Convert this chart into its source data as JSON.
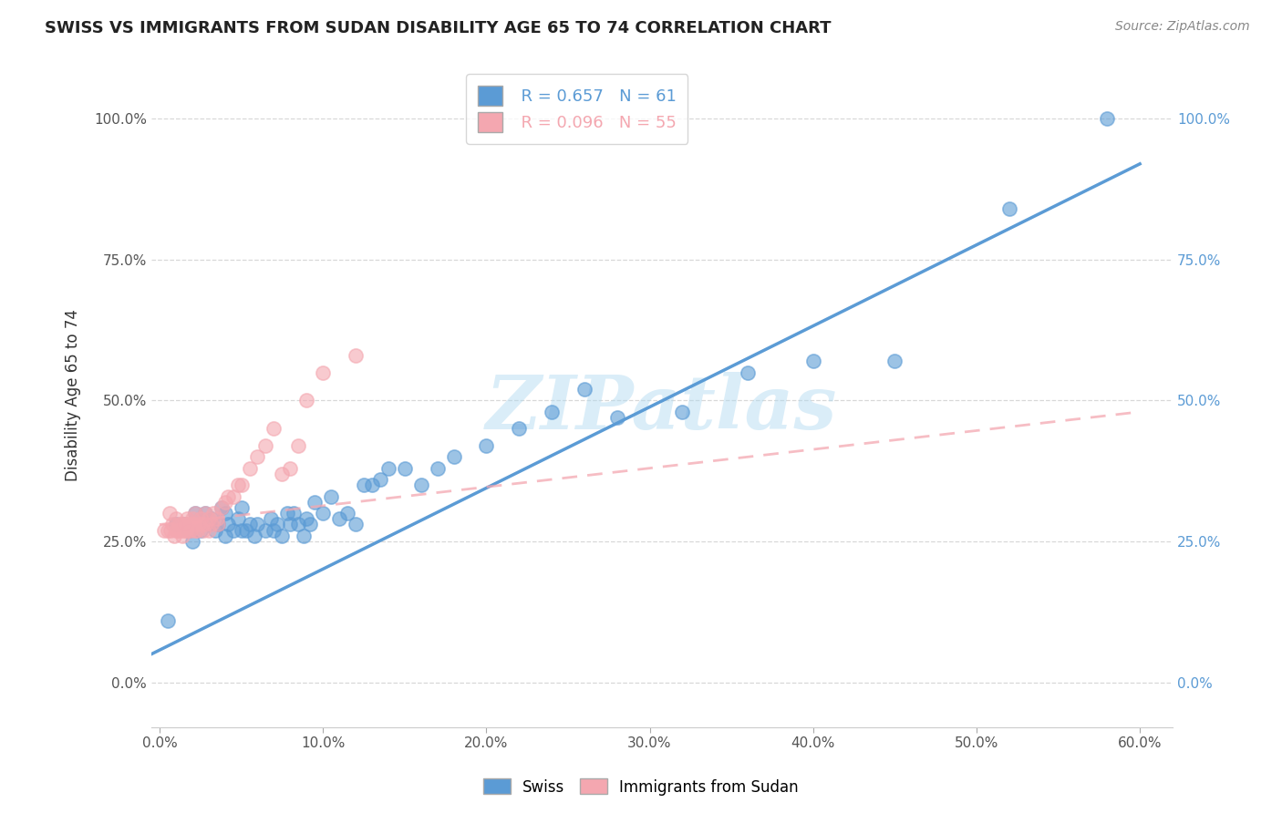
{
  "title": "SWISS VS IMMIGRANTS FROM SUDAN DISABILITY AGE 65 TO 74 CORRELATION CHART",
  "source": "Source: ZipAtlas.com",
  "ylabel": "Disability Age 65 to 74",
  "x_tick_vals": [
    0.0,
    0.1,
    0.2,
    0.3,
    0.4,
    0.5,
    0.6
  ],
  "y_tick_vals": [
    0.0,
    0.25,
    0.5,
    0.75,
    1.0
  ],
  "xlim": [
    -0.005,
    0.62
  ],
  "ylim": [
    -0.08,
    1.1
  ],
  "swiss_color": "#5b9bd5",
  "sudan_color": "#f4a7b0",
  "swiss_R": 0.657,
  "swiss_N": 61,
  "sudan_R": 0.096,
  "sudan_N": 55,
  "swiss_scatter_x": [
    0.005,
    0.01,
    0.015,
    0.018,
    0.02,
    0.022,
    0.025,
    0.028,
    0.03,
    0.032,
    0.034,
    0.036,
    0.038,
    0.04,
    0.04,
    0.042,
    0.045,
    0.048,
    0.05,
    0.05,
    0.053,
    0.055,
    0.058,
    0.06,
    0.065,
    0.068,
    0.07,
    0.072,
    0.075,
    0.078,
    0.08,
    0.082,
    0.085,
    0.088,
    0.09,
    0.092,
    0.095,
    0.1,
    0.105,
    0.11,
    0.115,
    0.12,
    0.125,
    0.13,
    0.135,
    0.14,
    0.15,
    0.16,
    0.17,
    0.18,
    0.2,
    0.22,
    0.24,
    0.26,
    0.28,
    0.32,
    0.36,
    0.4,
    0.45,
    0.52,
    0.58
  ],
  "swiss_scatter_y": [
    0.11,
    0.28,
    0.28,
    0.27,
    0.25,
    0.3,
    0.27,
    0.3,
    0.28,
    0.29,
    0.27,
    0.28,
    0.31,
    0.26,
    0.3,
    0.28,
    0.27,
    0.29,
    0.27,
    0.31,
    0.27,
    0.28,
    0.26,
    0.28,
    0.27,
    0.29,
    0.27,
    0.28,
    0.26,
    0.3,
    0.28,
    0.3,
    0.28,
    0.26,
    0.29,
    0.28,
    0.32,
    0.3,
    0.33,
    0.29,
    0.3,
    0.28,
    0.35,
    0.35,
    0.36,
    0.38,
    0.38,
    0.35,
    0.38,
    0.4,
    0.42,
    0.45,
    0.48,
    0.52,
    0.47,
    0.48,
    0.55,
    0.57,
    0.57,
    0.84,
    1.0
  ],
  "sudan_scatter_x": [
    0.003,
    0.005,
    0.006,
    0.007,
    0.008,
    0.009,
    0.01,
    0.01,
    0.011,
    0.012,
    0.013,
    0.013,
    0.014,
    0.015,
    0.015,
    0.016,
    0.016,
    0.017,
    0.018,
    0.018,
    0.019,
    0.02,
    0.02,
    0.021,
    0.022,
    0.022,
    0.023,
    0.024,
    0.025,
    0.026,
    0.027,
    0.028,
    0.028,
    0.03,
    0.03,
    0.032,
    0.033,
    0.035,
    0.036,
    0.038,
    0.04,
    0.042,
    0.045,
    0.048,
    0.05,
    0.055,
    0.06,
    0.065,
    0.07,
    0.075,
    0.08,
    0.085,
    0.09,
    0.1,
    0.12
  ],
  "sudan_scatter_y": [
    0.27,
    0.27,
    0.3,
    0.27,
    0.28,
    0.26,
    0.27,
    0.29,
    0.27,
    0.28,
    0.28,
    0.27,
    0.26,
    0.28,
    0.27,
    0.27,
    0.28,
    0.29,
    0.27,
    0.28,
    0.27,
    0.28,
    0.29,
    0.28,
    0.27,
    0.3,
    0.27,
    0.28,
    0.29,
    0.28,
    0.27,
    0.28,
    0.3,
    0.27,
    0.29,
    0.28,
    0.3,
    0.29,
    0.28,
    0.31,
    0.32,
    0.33,
    0.33,
    0.35,
    0.35,
    0.38,
    0.4,
    0.42,
    0.45,
    0.37,
    0.38,
    0.42,
    0.5,
    0.55,
    0.58
  ],
  "swiss_regline_x": [
    -0.005,
    0.6
  ],
  "swiss_regline_y": [
    0.05,
    0.92
  ],
  "sudan_regline_x": [
    0.0,
    0.6
  ],
  "sudan_regline_y": [
    0.28,
    0.48
  ],
  "watermark": "ZIPatlas",
  "background_color": "#ffffff",
  "grid_color": "#d8d8d8"
}
